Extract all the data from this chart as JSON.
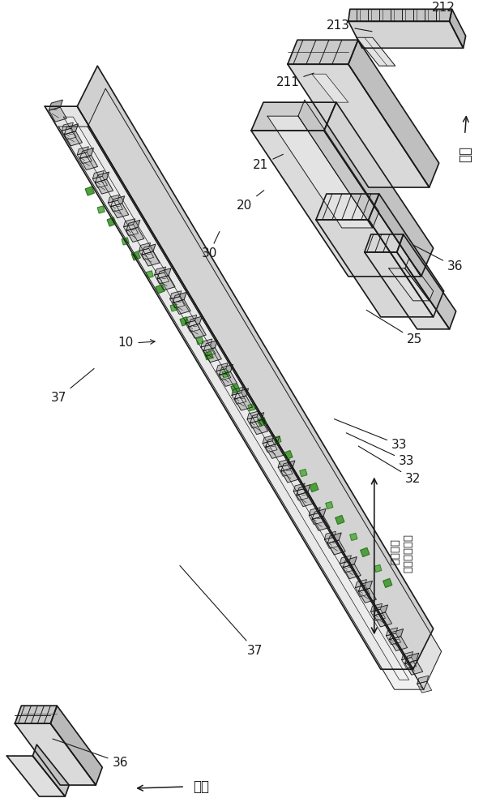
{
  "bg_color": "#ffffff",
  "line_color": "#1a1a1a",
  "labels": {
    "36_top": "36",
    "37_top": "37",
    "37_bot": "37",
    "33a": "33",
    "33b": "33",
    "33c": "33",
    "32": "32",
    "25": "25",
    "36_bot": "36",
    "10": "10",
    "30": "30",
    "20": "20",
    "21": "21",
    "211": "211",
    "213": "213",
    "212": "212",
    "back_label": "后侧",
    "front_label": "前侧",
    "direction_label": "安装方向（长度方向）"
  },
  "font_size_label": 11
}
